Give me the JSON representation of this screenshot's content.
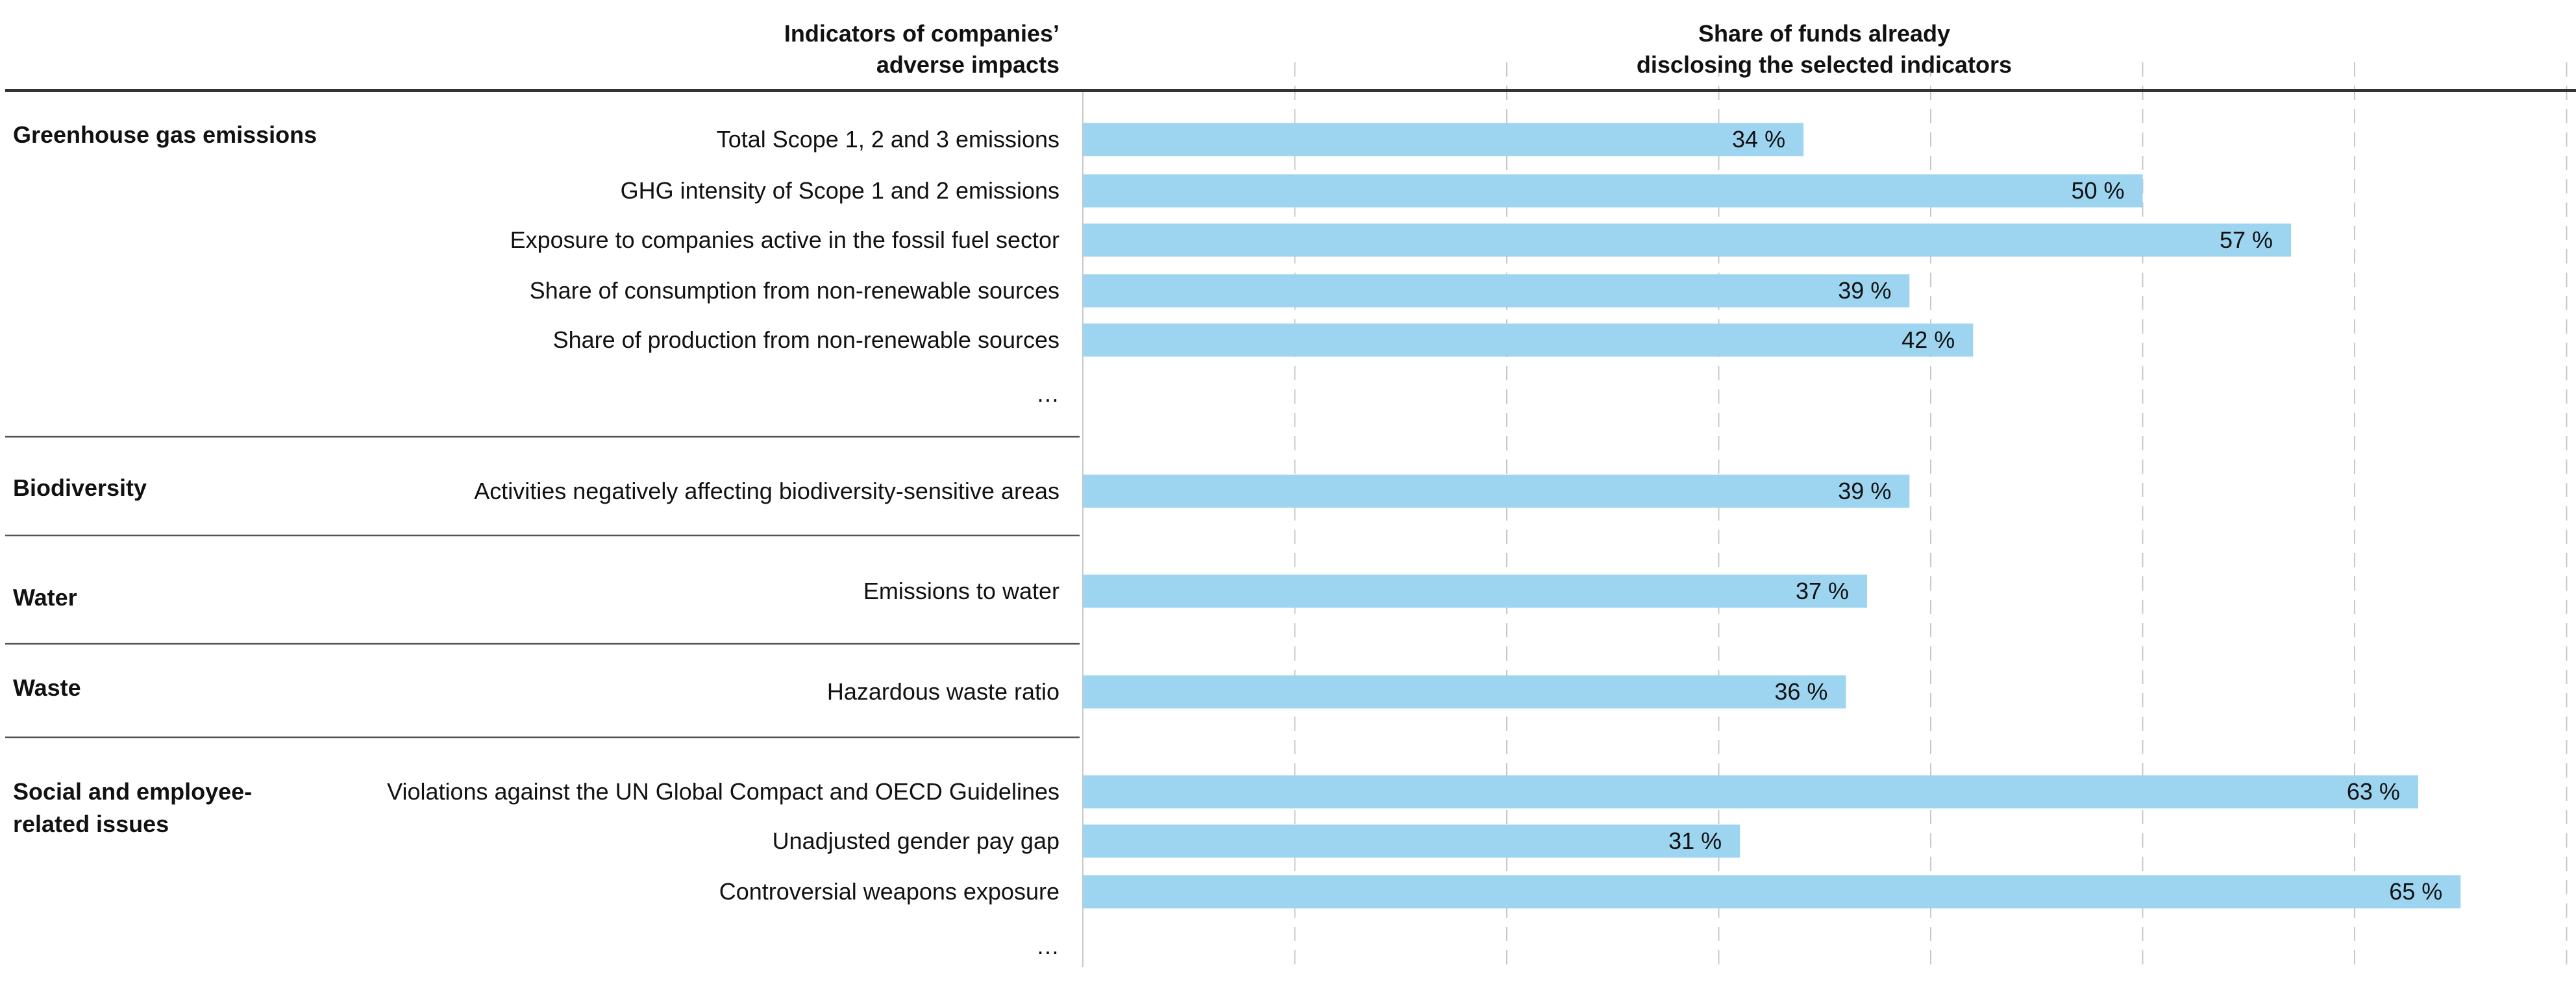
{
  "chart_data": {
    "type": "bar",
    "orientation": "horizontal",
    "header_left": [
      "Indicators of companies’",
      "adverse impacts"
    ],
    "header_right": [
      "Share of funds already",
      "disclosing the selected indicators"
    ],
    "xlim": [
      0,
      70
    ],
    "grid_step": 10,
    "grid": true,
    "value_suffix": " %",
    "bar_color": "#9dd5f1",
    "groups": [
      {
        "name": "Greenhouse gas emissions",
        "name_lines": [
          "Greenhouse gas emissions"
        ],
        "items": [
          {
            "label": "Total Scope 1, 2 and 3 emissions",
            "value": 34
          },
          {
            "label": "GHG intensity of Scope 1 and 2 emissions",
            "value": 50
          },
          {
            "label": "Exposure to companies active in the fossil fuel sector",
            "value": 57
          },
          {
            "label": "Share of consumption from non-renewable sources",
            "value": 39
          },
          {
            "label": "Share of production from non-renewable sources",
            "value": 42
          },
          {
            "label": "…",
            "value": null
          }
        ]
      },
      {
        "name": "Biodiversity",
        "name_lines": [
          "Biodiversity"
        ],
        "items": [
          {
            "label": "Activities negatively affecting biodiversity-sensitive areas",
            "value": 39
          }
        ]
      },
      {
        "name": "Water",
        "name_lines": [
          "Water"
        ],
        "items": [
          {
            "label": "Emissions to water",
            "value": 37
          }
        ]
      },
      {
        "name": "Waste",
        "name_lines": [
          "Waste"
        ],
        "items": [
          {
            "label": "Hazardous waste ratio",
            "value": 36
          }
        ]
      },
      {
        "name": "Social and employee-related issues",
        "name_lines": [
          "Social and employee-",
          "related issues"
        ],
        "items": [
          {
            "label": "Violations against the UN Global Compact and OECD Guidelines",
            "value": 63
          },
          {
            "label": "Unadjusted gender pay gap",
            "value": 31
          },
          {
            "label": "Controversial weapons exposure",
            "value": 65
          },
          {
            "label": "…",
            "value": null
          }
        ]
      }
    ]
  }
}
